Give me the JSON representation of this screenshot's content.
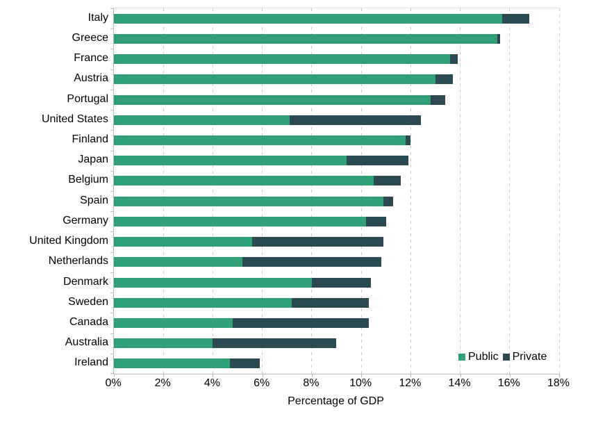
{
  "chart_data": {
    "type": "bar",
    "orientation": "horizontal",
    "stacked": true,
    "title": "",
    "xlabel": "Percentage of GDP",
    "ylabel": "",
    "xlim": [
      0,
      18
    ],
    "x_tick_step": 2,
    "x_tick_labels": [
      "0%",
      "2%",
      "4%",
      "6%",
      "8%",
      "10%",
      "12%",
      "14%",
      "16%",
      "18%"
    ],
    "grid": "vertical-dashed",
    "legend_position": "inside-bottom-right",
    "categories": [
      "Italy",
      "Greece",
      "France",
      "Austria",
      "Portugal",
      "United States",
      "Finland",
      "Japan",
      "Belgium",
      "Spain",
      "Germany",
      "United Kingdom",
      "Netherlands",
      "Denmark",
      "Sweden",
      "Canada",
      "Australia",
      "Ireland"
    ],
    "series": [
      {
        "name": "Public",
        "color": "#31a078",
        "values": [
          15.7,
          15.5,
          13.6,
          13.0,
          12.8,
          7.1,
          11.8,
          9.4,
          10.5,
          10.9,
          10.2,
          5.6,
          5.2,
          8.0,
          7.2,
          4.8,
          4.0,
          4.7
        ]
      },
      {
        "name": "Private",
        "color": "#2b4a52",
        "values": [
          1.1,
          0.1,
          0.3,
          0.7,
          0.6,
          5.3,
          0.2,
          2.5,
          1.1,
          0.4,
          0.8,
          5.3,
          5.6,
          2.4,
          3.1,
          5.5,
          5.0,
          1.2
        ]
      }
    ],
    "totals": [
      16.8,
      15.6,
      13.9,
      13.7,
      13.4,
      12.4,
      12.0,
      11.9,
      11.6,
      11.3,
      11.0,
      10.9,
      10.8,
      10.4,
      10.3,
      10.3,
      9.0,
      5.9
    ]
  },
  "colors": {
    "public": "#31a078",
    "private": "#2b4a52",
    "gridline": "#cccccc",
    "axis_line": "#b9b9b9",
    "text": "#000000"
  },
  "legend": {
    "public_label": "Public",
    "private_label": "Private"
  }
}
